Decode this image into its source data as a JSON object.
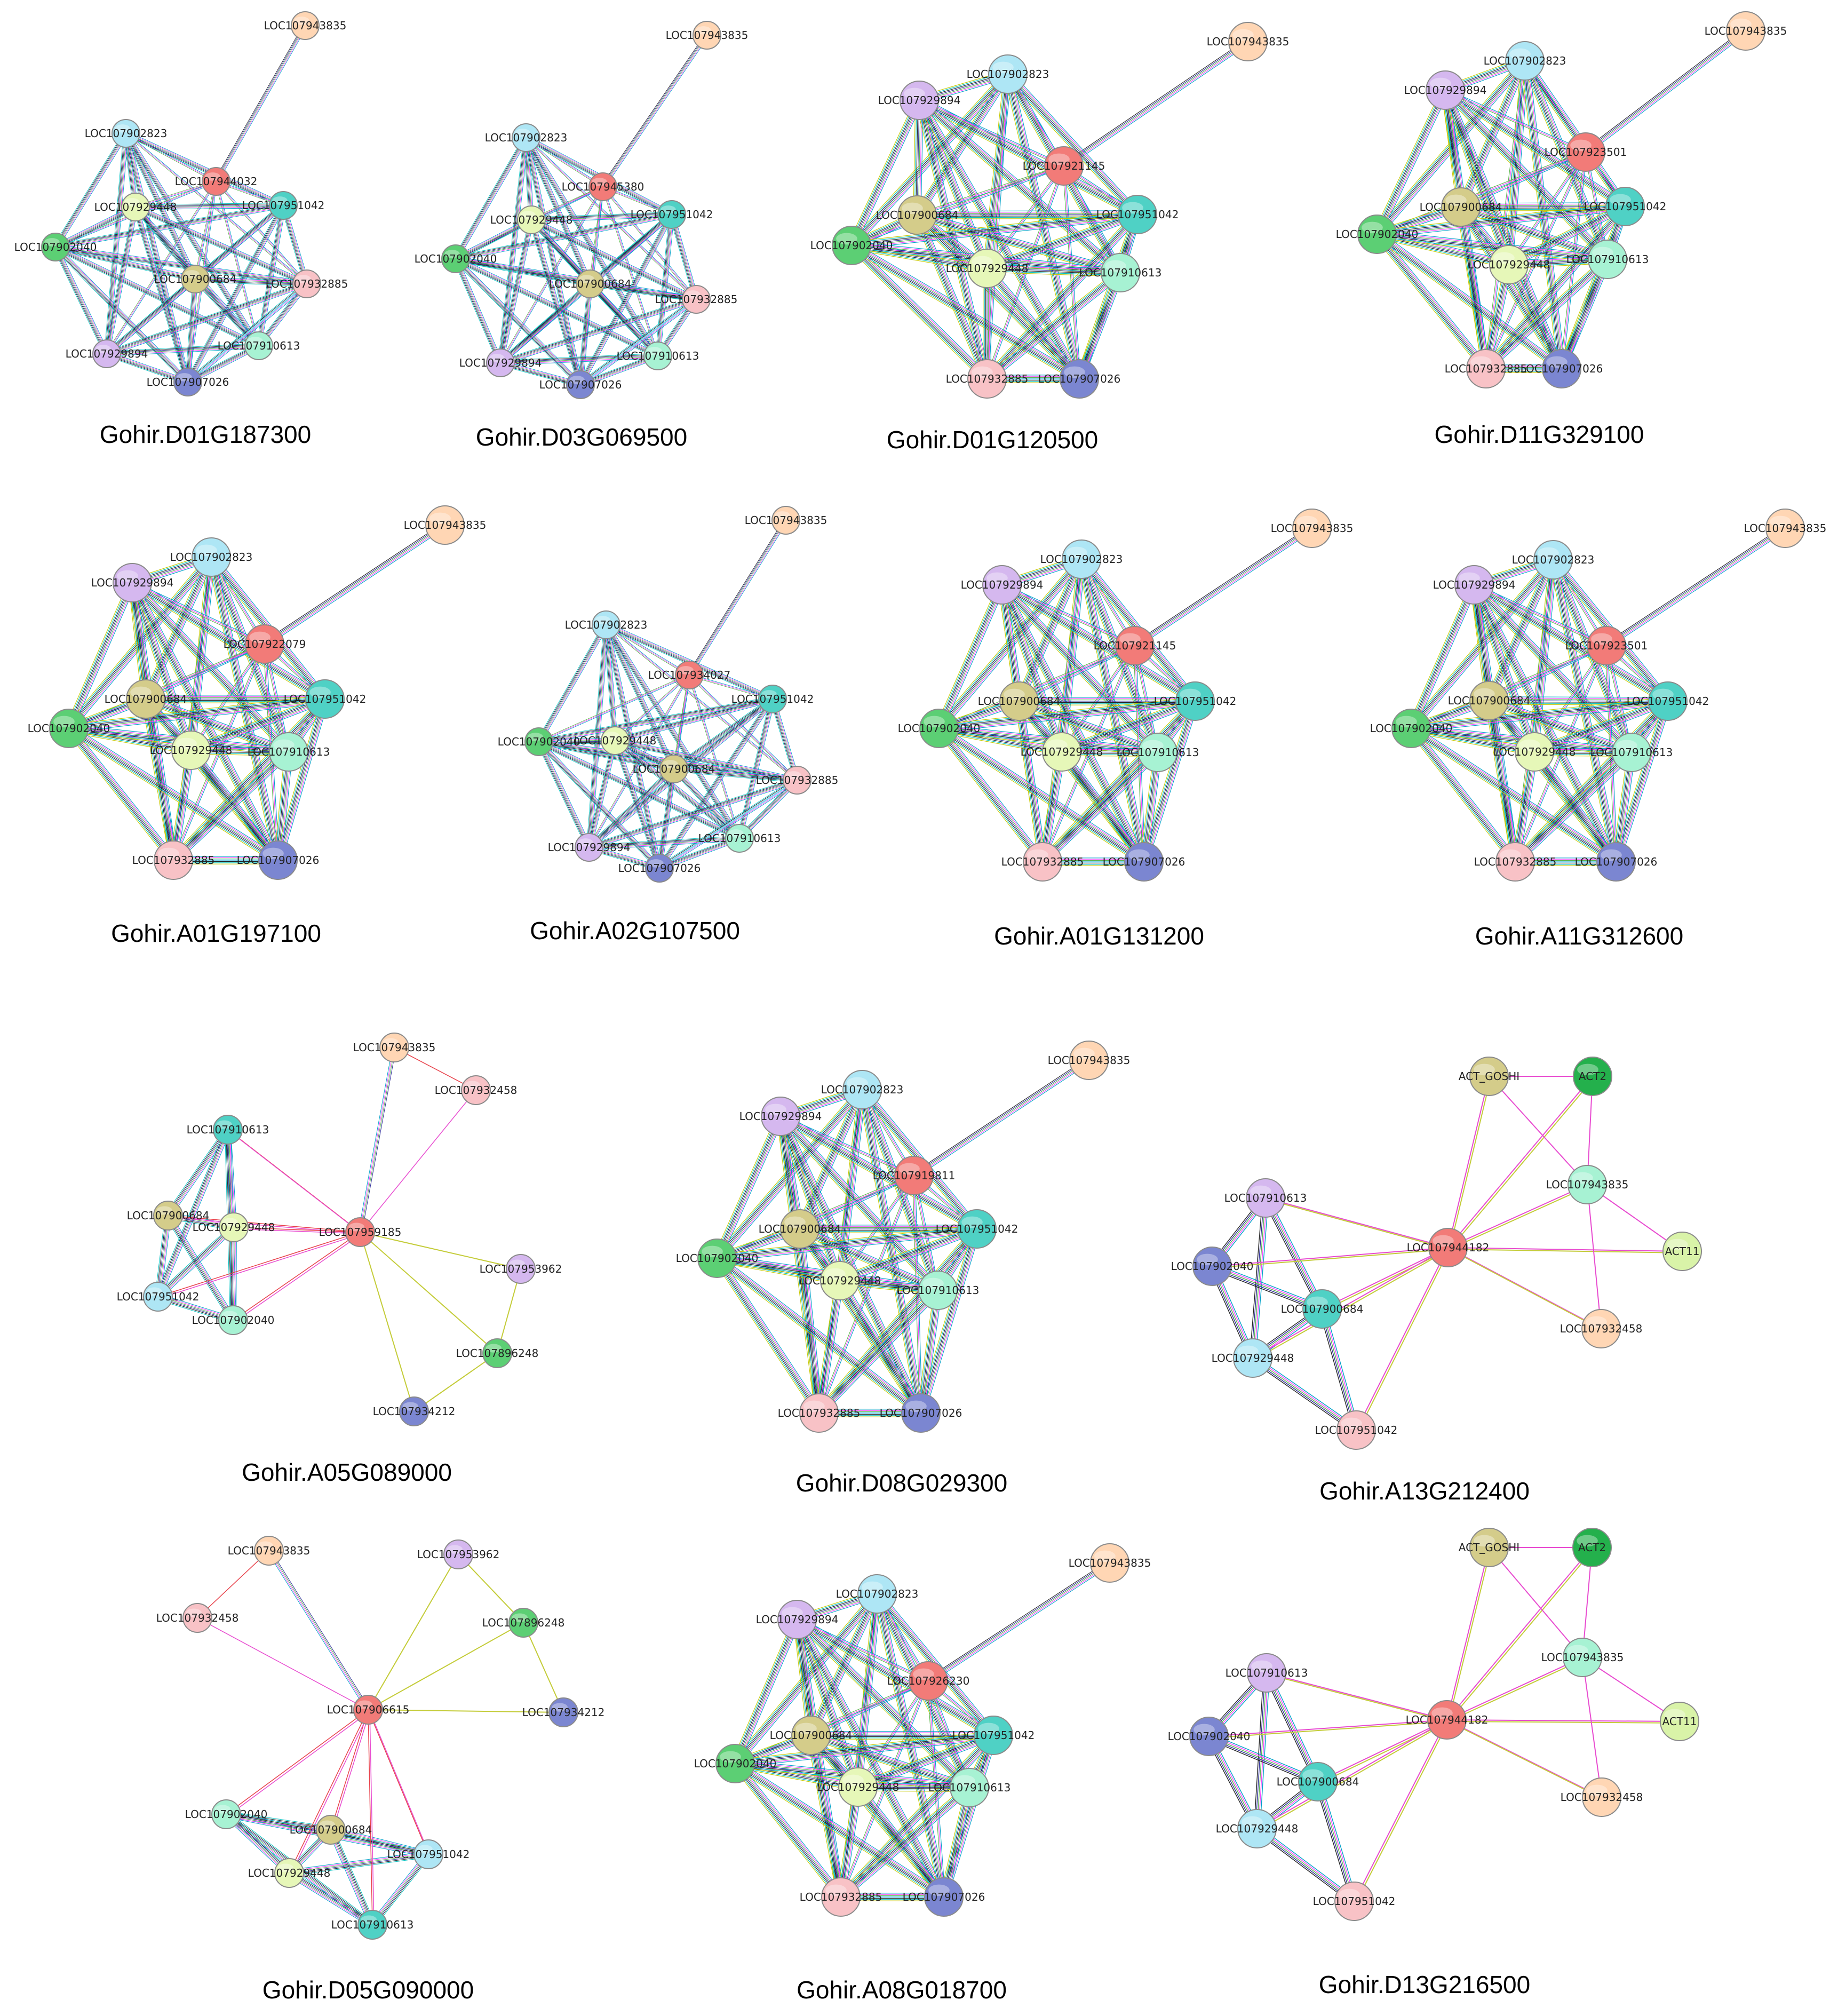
{
  "colors": {
    "salmon": "#ffd6b4",
    "lightblue": "#aee6f5",
    "red": "#f27b78",
    "teal": "#4fd1c5",
    "green": "#5ccf74",
    "lime": "#e6f7b8",
    "khaki": "#d4cc8a",
    "pink": "#f8c2c6",
    "mint": "#a7f2d3",
    "lavender": "#d5b8ef",
    "navy": "#7b86d1",
    "dkgreen": "#24b04c",
    "yellowgreen": "#d9f3a8",
    "edge_palette": [
      "#00a0c8",
      "#ff3fff",
      "#5ab44a",
      "#2c2c9a",
      "#222222",
      "#00c0c0",
      "#c8c800"
    ],
    "single_edge": [
      "#c4cc39",
      "#e84bd0",
      "#e8414a"
    ]
  },
  "panels": [
    {
      "caption": "Gohir.D01G187300",
      "center": "LOC107944032",
      "nodes": [
        {
          "id": "LOC107943835",
          "color": "salmon"
        },
        {
          "id": "LOC107902823",
          "color": "lightblue"
        },
        {
          "id": "LOC107944032",
          "color": "red"
        },
        {
          "id": "LOC107951042",
          "color": "teal"
        },
        {
          "id": "LOC107902040",
          "color": "green"
        },
        {
          "id": "LOC107929448",
          "color": "lime"
        },
        {
          "id": "LOC107900684",
          "color": "khaki"
        },
        {
          "id": "LOC107932885",
          "color": "pink"
        },
        {
          "id": "LOC107910613",
          "color": "mint"
        },
        {
          "id": "LOC107929894",
          "color": "lavender"
        },
        {
          "id": "LOC107907026",
          "color": "navy"
        }
      ]
    },
    {
      "caption": "Gohir.D03G069500",
      "center": "LOC107945380",
      "nodes": [
        {
          "id": "LOC107943835",
          "color": "salmon"
        },
        {
          "id": "LOC107902823",
          "color": "lightblue"
        },
        {
          "id": "LOC107945380",
          "color": "red"
        },
        {
          "id": "LOC107951042",
          "color": "teal"
        },
        {
          "id": "LOC107902040",
          "color": "green"
        },
        {
          "id": "LOC107929448",
          "color": "lime"
        },
        {
          "id": "LOC107900684",
          "color": "khaki"
        },
        {
          "id": "LOC107932885",
          "color": "pink"
        },
        {
          "id": "LOC107910613",
          "color": "mint"
        },
        {
          "id": "LOC107929894",
          "color": "lavender"
        },
        {
          "id": "LOC107907026",
          "color": "navy"
        }
      ]
    },
    {
      "caption": "Gohir.D01G120500",
      "center": "LOC107921145",
      "nodes": [
        {
          "id": "LOC107943835",
          "color": "salmon"
        },
        {
          "id": "LOC107902823",
          "color": "lightblue"
        },
        {
          "id": "LOC107929894",
          "color": "lavender"
        },
        {
          "id": "LOC107921145",
          "color": "red"
        },
        {
          "id": "LOC107900684",
          "color": "khaki"
        },
        {
          "id": "LOC107951042",
          "color": "teal"
        },
        {
          "id": "LOC107902040",
          "color": "green"
        },
        {
          "id": "LOC107929448",
          "color": "lime"
        },
        {
          "id": "LOC107910613",
          "color": "mint"
        },
        {
          "id": "LOC107932885",
          "color": "pink"
        },
        {
          "id": "LOC107907026",
          "color": "navy"
        }
      ]
    },
    {
      "caption": "Gohir.D11G329100",
      "center": "LOC107923501",
      "nodes": [
        {
          "id": "LOC107943835",
          "color": "salmon"
        },
        {
          "id": "LOC107902823",
          "color": "lightblue"
        },
        {
          "id": "LOC107929894",
          "color": "lavender"
        },
        {
          "id": "LOC107923501",
          "color": "red"
        },
        {
          "id": "LOC107900684",
          "color": "khaki"
        },
        {
          "id": "LOC107951042",
          "color": "teal"
        },
        {
          "id": "LOC107902040",
          "color": "green"
        },
        {
          "id": "LOC107929448",
          "color": "lime"
        },
        {
          "id": "LOC107910613",
          "color": "mint"
        },
        {
          "id": "LOC107932885",
          "color": "pink"
        },
        {
          "id": "LOC107907026",
          "color": "navy"
        }
      ]
    },
    {
      "caption": "Gohir.A01G197100",
      "center": "LOC107922079",
      "nodes": [
        {
          "id": "LOC107943835",
          "color": "salmon"
        },
        {
          "id": "LOC107902823",
          "color": "lightblue"
        },
        {
          "id": "LOC107929894",
          "color": "lavender"
        },
        {
          "id": "LOC107922079",
          "color": "red"
        },
        {
          "id": "LOC107900684",
          "color": "khaki"
        },
        {
          "id": "LOC107951042",
          "color": "teal"
        },
        {
          "id": "LOC107902040",
          "color": "green"
        },
        {
          "id": "LOC107929448",
          "color": "lime"
        },
        {
          "id": "LOC107910613",
          "color": "mint"
        },
        {
          "id": "LOC107932885",
          "color": "pink"
        },
        {
          "id": "LOC107907026",
          "color": "navy"
        }
      ]
    },
    {
      "caption": "Gohir.A02G107500",
      "center": "LOC107934027",
      "nodes": [
        {
          "id": "LOC107943835",
          "color": "salmon"
        },
        {
          "id": "LOC107902823",
          "color": "lightblue"
        },
        {
          "id": "LOC107934027",
          "color": "red"
        },
        {
          "id": "LOC107951042",
          "color": "teal"
        },
        {
          "id": "LOC107902040",
          "color": "green"
        },
        {
          "id": "LOC107929448",
          "color": "lime"
        },
        {
          "id": "LOC107900684",
          "color": "khaki"
        },
        {
          "id": "LOC107932885",
          "color": "pink"
        },
        {
          "id": "LOC107910613",
          "color": "mint"
        },
        {
          "id": "LOC107929894",
          "color": "lavender"
        },
        {
          "id": "LOC107907026",
          "color": "navy"
        }
      ]
    },
    {
      "caption": "Gohir.A01G131200",
      "center": "LOC107921145",
      "nodes": [
        {
          "id": "LOC107943835",
          "color": "salmon"
        },
        {
          "id": "LOC107902823",
          "color": "lightblue"
        },
        {
          "id": "LOC107929894",
          "color": "lavender"
        },
        {
          "id": "LOC107921145",
          "color": "red"
        },
        {
          "id": "LOC107900684",
          "color": "khaki"
        },
        {
          "id": "LOC107951042",
          "color": "teal"
        },
        {
          "id": "LOC107902040",
          "color": "green"
        },
        {
          "id": "LOC107929448",
          "color": "lime"
        },
        {
          "id": "LOC107910613",
          "color": "mint"
        },
        {
          "id": "LOC107932885",
          "color": "pink"
        },
        {
          "id": "LOC107907026",
          "color": "navy"
        }
      ]
    },
    {
      "caption": "Gohir.A11G312600",
      "center": "LOC107923501",
      "nodes": [
        {
          "id": "LOC107943835",
          "color": "salmon"
        },
        {
          "id": "LOC107902823",
          "color": "lightblue"
        },
        {
          "id": "LOC107929894",
          "color": "lavender"
        },
        {
          "id": "LOC107923501",
          "color": "red"
        },
        {
          "id": "LOC107900684",
          "color": "khaki"
        },
        {
          "id": "LOC107951042",
          "color": "teal"
        },
        {
          "id": "LOC107902040",
          "color": "green"
        },
        {
          "id": "LOC107929448",
          "color": "lime"
        },
        {
          "id": "LOC107910613",
          "color": "mint"
        },
        {
          "id": "LOC107932885",
          "color": "pink"
        },
        {
          "id": "LOC107907026",
          "color": "navy"
        }
      ]
    },
    {
      "caption": "Gohir.A05G089000",
      "center": "LOC107959185",
      "nodes": [
        {
          "id": "LOC107943835",
          "color": "salmon"
        },
        {
          "id": "LOC107932458",
          "color": "pink"
        },
        {
          "id": "LOC107910613",
          "color": "teal"
        },
        {
          "id": "LOC107900684",
          "color": "khaki"
        },
        {
          "id": "LOC107929448",
          "color": "lime"
        },
        {
          "id": "LOC107959185",
          "color": "red"
        },
        {
          "id": "LOC107953962",
          "color": "lavender"
        },
        {
          "id": "LOC107951042",
          "color": "lightblue"
        },
        {
          "id": "LOC107902040",
          "color": "mint"
        },
        {
          "id": "LOC107896248",
          "color": "green"
        },
        {
          "id": "LOC107934212",
          "color": "navy"
        }
      ]
    },
    {
      "caption": "Gohir.D08G029300",
      "center": "LOC107919811",
      "nodes": [
        {
          "id": "LOC107943835",
          "color": "salmon"
        },
        {
          "id": "LOC107902823",
          "color": "lightblue"
        },
        {
          "id": "LOC107929894",
          "color": "lavender"
        },
        {
          "id": "LOC107919811",
          "color": "red"
        },
        {
          "id": "LOC107900684",
          "color": "khaki"
        },
        {
          "id": "LOC107951042",
          "color": "teal"
        },
        {
          "id": "LOC107902040",
          "color": "green"
        },
        {
          "id": "LOC107929448",
          "color": "lime"
        },
        {
          "id": "LOC107910613",
          "color": "mint"
        },
        {
          "id": "LOC107932885",
          "color": "pink"
        },
        {
          "id": "LOC107907026",
          "color": "navy"
        }
      ]
    },
    {
      "caption": "Gohir.A13G212400",
      "center": "LOC107944182",
      "nodes": [
        {
          "id": "ACT_GOSHI",
          "color": "khaki"
        },
        {
          "id": "ACT2",
          "color": "dkgreen"
        },
        {
          "id": "LOC107943835",
          "color": "mint"
        },
        {
          "id": "LOC107910613",
          "color": "lavender"
        },
        {
          "id": "LOC107944182",
          "color": "red"
        },
        {
          "id": "ACT11",
          "color": "yellowgreen"
        },
        {
          "id": "LOC107902040",
          "color": "navy"
        },
        {
          "id": "LOC107900684",
          "color": "teal"
        },
        {
          "id": "LOC107932458",
          "color": "salmon"
        },
        {
          "id": "LOC107929448",
          "color": "lightblue"
        },
        {
          "id": "LOC107951042",
          "color": "pink"
        }
      ]
    },
    {
      "caption": "Gohir.D05G090000",
      "center": "LOC107906615",
      "nodes": [
        {
          "id": "LOC107943835",
          "color": "salmon"
        },
        {
          "id": "LOC107953962",
          "color": "lavender"
        },
        {
          "id": "LOC107932458",
          "color": "pink"
        },
        {
          "id": "LOC107896248",
          "color": "green"
        },
        {
          "id": "LOC107906615",
          "color": "red"
        },
        {
          "id": "LOC107934212",
          "color": "navy"
        },
        {
          "id": "LOC107902040",
          "color": "mint"
        },
        {
          "id": "LOC107900684",
          "color": "khaki"
        },
        {
          "id": "LOC107951042",
          "color": "lightblue"
        },
        {
          "id": "LOC107929448",
          "color": "lime"
        },
        {
          "id": "LOC107910613",
          "color": "teal"
        }
      ]
    },
    {
      "caption": "Gohir.A08G018700",
      "center": "LOC107926230",
      "nodes": [
        {
          "id": "LOC107943835",
          "color": "salmon"
        },
        {
          "id": "LOC107902823",
          "color": "lightblue"
        },
        {
          "id": "LOC107929894",
          "color": "lavender"
        },
        {
          "id": "LOC107926230",
          "color": "red"
        },
        {
          "id": "LOC107900684",
          "color": "khaki"
        },
        {
          "id": "LOC107951042",
          "color": "teal"
        },
        {
          "id": "LOC107902040",
          "color": "green"
        },
        {
          "id": "LOC107929448",
          "color": "lime"
        },
        {
          "id": "LOC107910613",
          "color": "mint"
        },
        {
          "id": "LOC107932885",
          "color": "pink"
        },
        {
          "id": "LOC107907026",
          "color": "navy"
        }
      ]
    },
    {
      "caption": "Gohir.D13G216500",
      "center": "LOC107944182",
      "nodes": [
        {
          "id": "ACT_GOSHI",
          "color": "khaki"
        },
        {
          "id": "ACT2",
          "color": "dkgreen"
        },
        {
          "id": "LOC107943835",
          "color": "mint"
        },
        {
          "id": "LOC107910613",
          "color": "lavender"
        },
        {
          "id": "LOC107944182",
          "color": "red"
        },
        {
          "id": "ACT11",
          "color": "yellowgreen"
        },
        {
          "id": "LOC107902040",
          "color": "navy"
        },
        {
          "id": "LOC107900684",
          "color": "teal"
        },
        {
          "id": "LOC107932458",
          "color": "salmon"
        },
        {
          "id": "LOC107929448",
          "color": "lightblue"
        },
        {
          "id": "LOC107951042",
          "color": "pink"
        }
      ]
    }
  ]
}
